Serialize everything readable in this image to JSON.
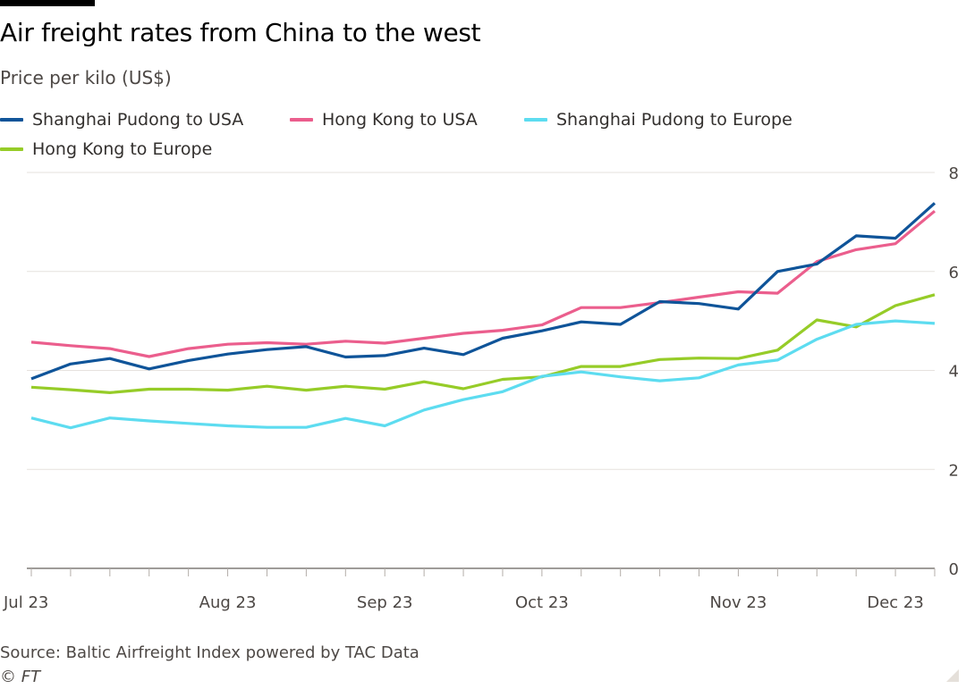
{
  "header": {
    "title": "Air freight rates from China to the west",
    "subtitle": "Price per kilo (US$)"
  },
  "legend": [
    {
      "label": "Shanghai Pudong to USA",
      "color": "#0f5499"
    },
    {
      "label": "Hong Kong to USA",
      "color": "#eb5e8d"
    },
    {
      "label": "Shanghai Pudong to Europe",
      "color": "#5ddcf0"
    },
    {
      "label": "Hong Kong to Europe",
      "color": "#96cc28"
    }
  ],
  "footer": {
    "source": "Source: Baltic Airfreight Index powered by TAC Data",
    "copyright": "© FT"
  },
  "chart_data": {
    "type": "line",
    "title": "Air freight rates from China to the west",
    "ylabel": "Price per kilo (US$)",
    "xlabel": "",
    "ylim": [
      0,
      8
    ],
    "yticks": [
      0,
      2,
      4,
      6,
      8
    ],
    "xlim": [
      0,
      23
    ],
    "x_ticks": [
      0,
      5,
      9,
      13,
      18,
      22
    ],
    "x_tick_labels": [
      "Jul 23",
      "Aug 23",
      "Sep 23",
      "Oct 23",
      "Nov 23",
      "Dec 23"
    ],
    "x_minor_ticks": [
      0,
      1,
      2,
      3,
      4,
      5,
      6,
      7,
      8,
      9,
      10,
      11,
      12,
      13,
      14,
      15,
      16,
      17,
      18,
      19,
      20,
      21,
      22,
      23
    ],
    "series": [
      {
        "name": "Shanghai Pudong to USA",
        "color": "#0f5499",
        "values": [
          3.83,
          4.13,
          4.24,
          4.03,
          4.2,
          4.33,
          4.42,
          4.48,
          4.27,
          4.3,
          4.45,
          4.32,
          4.65,
          4.8,
          4.98,
          4.93,
          5.39,
          5.35,
          5.24,
          6.0,
          6.15,
          6.72,
          6.67,
          7.38
        ]
      },
      {
        "name": "Hong Kong to USA",
        "color": "#eb5e8d",
        "values": [
          4.57,
          4.5,
          4.44,
          4.28,
          4.44,
          4.53,
          4.56,
          4.53,
          4.59,
          4.55,
          4.65,
          4.75,
          4.81,
          4.92,
          5.27,
          5.27,
          5.37,
          5.48,
          5.59,
          5.56,
          6.2,
          6.44,
          6.56,
          7.22
        ]
      },
      {
        "name": "Shanghai Pudong to Europe",
        "color": "#5ddcf0",
        "values": [
          3.04,
          2.84,
          3.04,
          2.98,
          2.93,
          2.88,
          2.85,
          2.85,
          3.03,
          2.88,
          3.2,
          3.41,
          3.57,
          3.88,
          3.97,
          3.87,
          3.79,
          3.85,
          4.11,
          4.21,
          4.63,
          4.93,
          5.0,
          4.95
        ]
      },
      {
        "name": "Hong Kong to Europe",
        "color": "#96cc28",
        "values": [
          3.66,
          3.61,
          3.55,
          3.62,
          3.62,
          3.6,
          3.68,
          3.6,
          3.68,
          3.62,
          3.77,
          3.63,
          3.82,
          3.87,
          4.08,
          4.08,
          4.22,
          4.25,
          4.24,
          4.41,
          5.02,
          4.88,
          5.31,
          5.53
        ]
      }
    ]
  }
}
